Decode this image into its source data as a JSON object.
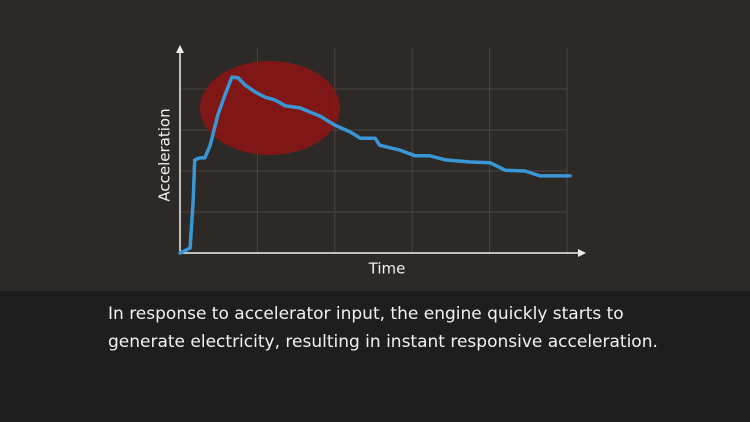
{
  "chart_data": {
    "type": "line",
    "x_label": "Time",
    "y_label": "Acceleration",
    "x": [
      0,
      0.13,
      0.17,
      0.19,
      0.26,
      0.32,
      0.39,
      0.49,
      0.58,
      0.67,
      0.75,
      0.84,
      0.97,
      1.1,
      1.23,
      1.36,
      1.55,
      1.68,
      1.81,
      2.0,
      2.2,
      2.33,
      2.52,
      2.58,
      2.84,
      3.04,
      3.23,
      3.43,
      3.75,
      4.01,
      4.2,
      4.46,
      4.65,
      5.04
    ],
    "series": [
      {
        "color": "#3a97d6",
        "values": [
          0,
          0.12,
          1.29,
          2.27,
          2.32,
          2.32,
          2.63,
          3.37,
          3.85,
          4.29,
          4.27,
          4.1,
          3.93,
          3.8,
          3.73,
          3.59,
          3.54,
          3.44,
          3.34,
          3.12,
          2.95,
          2.8,
          2.8,
          2.63,
          2.51,
          2.37,
          2.37,
          2.27,
          2.22,
          2.2,
          2.02,
          2.0,
          1.88,
          1.88
        ]
      }
    ],
    "xlim": [
      0,
      5.2
    ],
    "ylim": [
      0,
      5
    ],
    "xticks": [
      1,
      2,
      3,
      4,
      5
    ],
    "yticks": [
      1,
      2,
      3,
      4
    ],
    "grid": true
  },
  "caption": [
    "In response to accelerator input, the engine quickly starts to",
    "generate electricity, resulting in instant responsive acceleration."
  ]
}
